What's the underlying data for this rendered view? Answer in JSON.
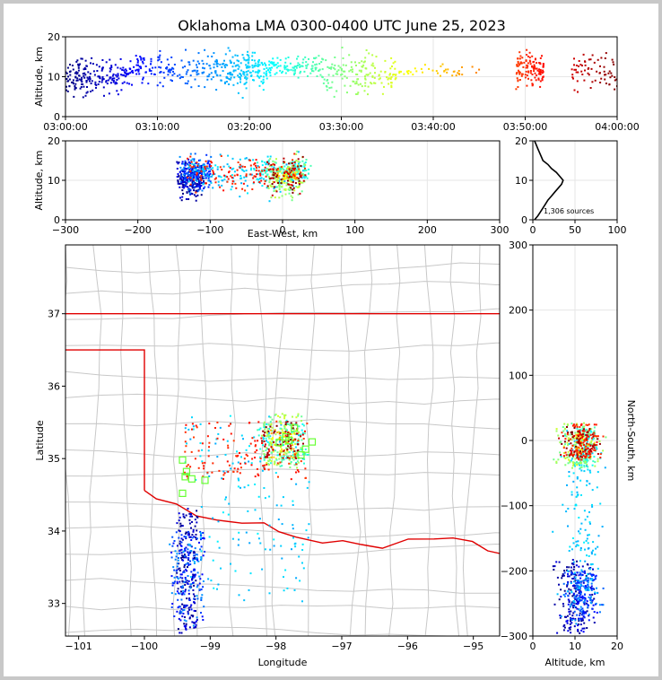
{
  "title": "Oklahoma LMA 0300-0400 UTC June 25, 2023",
  "time_panel": {
    "ylabel": "Altitude, km",
    "ylim": [
      0,
      20
    ],
    "yticks": [
      "0",
      "10",
      "20"
    ],
    "xticks": [
      "03:00:00",
      "03:10:00",
      "03:20:00",
      "03:30:00",
      "03:40:00",
      "03:50:00",
      "04:00:00"
    ]
  },
  "ew_panel": {
    "ylabel": "Altitude, km",
    "xlabel": "East-West, km",
    "xlim": [
      -300,
      300
    ],
    "ylim": [
      0,
      20
    ],
    "xticks": [
      "−300",
      "−200",
      "−100",
      "0",
      "100",
      "200",
      "300"
    ],
    "yticks": [
      "0",
      "10",
      "20"
    ]
  },
  "hist_panel": {
    "annotation": "1,306 sources",
    "xticks": [
      "0",
      "50",
      "100"
    ],
    "yticks": [
      "0",
      "10",
      "20"
    ]
  },
  "map_panel": {
    "xlabel": "Longitude",
    "ylabel": "Latitude",
    "xlim": [
      -101.2,
      -94.6
    ],
    "ylim": [
      32.55,
      37.95
    ],
    "xticks": [
      "−101",
      "−100",
      "−99",
      "−98",
      "−97",
      "−96",
      "−95"
    ],
    "yticks": [
      "33",
      "34",
      "35",
      "36",
      "37"
    ],
    "border_color": "#e00000",
    "county_color": "#c8c8c8"
  },
  "ns_panel": {
    "xlabel": "Altitude, km",
    "ylabel": "North-South, km",
    "xlim": [
      0,
      20
    ],
    "ylim": [
      -300,
      300
    ],
    "xticks": [
      "0",
      "10",
      "20"
    ],
    "yticks": [
      "300",
      "200",
      "100",
      "0",
      "−100",
      "−200",
      "−300"
    ]
  },
  "chart_data": {
    "type": "scatter",
    "title": "Oklahoma LMA 0300-0400 UTC June 25, 2023",
    "source_count": 1306,
    "color_scale": "time (blue → green → red), 03:00 to 04:00 UTC",
    "clusters": [
      {
        "time_range_min": [
          0,
          7
        ],
        "altitude_km": [
          2,
          18
        ],
        "lon": [
          -99.5,
          -99.2
        ],
        "lat": [
          32.6,
          34.3
        ],
        "ew_km": [
          -145,
          -110
        ],
        "ns_km": [
          -295,
          -185
        ]
      },
      {
        "time_range_min": [
          7,
          17
        ],
        "altitude_km": [
          4,
          20
        ],
        "lon": [
          -99.6,
          -99.1
        ],
        "lat": [
          32.7,
          34.0
        ],
        "ew_km": [
          -140,
          -100
        ],
        "ns_km": [
          -280,
          -200
        ]
      },
      {
        "time_range_min": [
          17,
          22
        ],
        "altitude_km": [
          3,
          20
        ],
        "lon": [
          -99.4,
          -97.5
        ],
        "lat": [
          33.0,
          35.6
        ],
        "ew_km": [
          -130,
          30
        ],
        "ns_km": [
          -250,
          20
        ]
      },
      {
        "time_range_min": [
          22,
          28
        ],
        "altitude_km": [
          8,
          17
        ],
        "lon": [
          -98.3,
          -97.5
        ],
        "lat": [
          34.9,
          35.5
        ],
        "ew_km": [
          -40,
          40
        ],
        "ns_km": [
          -40,
          20
        ]
      },
      {
        "time_range_min": [
          28,
          36
        ],
        "altitude_km": [
          1,
          20
        ],
        "lon": [
          -98.2,
          -97.6
        ],
        "lat": [
          34.9,
          35.6
        ],
        "ew_km": [
          -20,
          30
        ],
        "ns_km": [
          -40,
          25
        ]
      },
      {
        "time_range_min": [
          36,
          45
        ],
        "altitude_km": [
          9,
          14
        ],
        "lon": [
          -98.1,
          -97.7
        ],
        "lat": [
          35.0,
          35.4
        ],
        "ew_km": [
          -10,
          20
        ],
        "ns_km": [
          -20,
          10
        ]
      },
      {
        "time_range_min": [
          49,
          52
        ],
        "altitude_km": [
          4,
          20
        ],
        "lon": [
          -99.4,
          -97.5
        ],
        "lat": [
          34.7,
          35.5
        ],
        "ew_km": [
          -130,
          30
        ],
        "ns_km": [
          -30,
          25
        ]
      },
      {
        "time_range_min": [
          55,
          60
        ],
        "altitude_km": [
          3,
          20
        ],
        "lon": [
          -98.2,
          -97.6
        ],
        "lat": [
          35.0,
          35.5
        ],
        "ew_km": [
          -20,
          30
        ],
        "ns_km": [
          -25,
          20
        ]
      }
    ],
    "altitude_histogram": [
      [
        0,
        2
      ],
      [
        1,
        6
      ],
      [
        2,
        9
      ],
      [
        3,
        12
      ],
      [
        4,
        15
      ],
      [
        5,
        18
      ],
      [
        6,
        22
      ],
      [
        7,
        26
      ],
      [
        8,
        30
      ],
      [
        9,
        34
      ],
      [
        10,
        36
      ],
      [
        11,
        32
      ],
      [
        12,
        28
      ],
      [
        13,
        22
      ],
      [
        14,
        18
      ],
      [
        15,
        12
      ],
      [
        16,
        10
      ],
      [
        17,
        8
      ],
      [
        18,
        6
      ],
      [
        19,
        4
      ],
      [
        20,
        2
      ]
    ],
    "sites": [
      {
        "lon": -99.42,
        "lat": 34.98
      },
      {
        "lon": -99.38,
        "lat": 34.75
      },
      {
        "lon": -99.28,
        "lat": 34.72
      },
      {
        "lon": -99.08,
        "lat": 34.7
      },
      {
        "lon": -99.42,
        "lat": 34.52
      },
      {
        "lon": -99.36,
        "lat": 34.82
      },
      {
        "lon": -97.95,
        "lat": 35.22
      },
      {
        "lon": -97.8,
        "lat": 35.25
      },
      {
        "lon": -97.72,
        "lat": 35.42
      },
      {
        "lon": -97.55,
        "lat": 35.13
      },
      {
        "lon": -97.45,
        "lat": 35.23
      },
      {
        "lon": -97.62,
        "lat": 35.05
      },
      {
        "lon": -97.85,
        "lat": 35.3
      }
    ]
  }
}
